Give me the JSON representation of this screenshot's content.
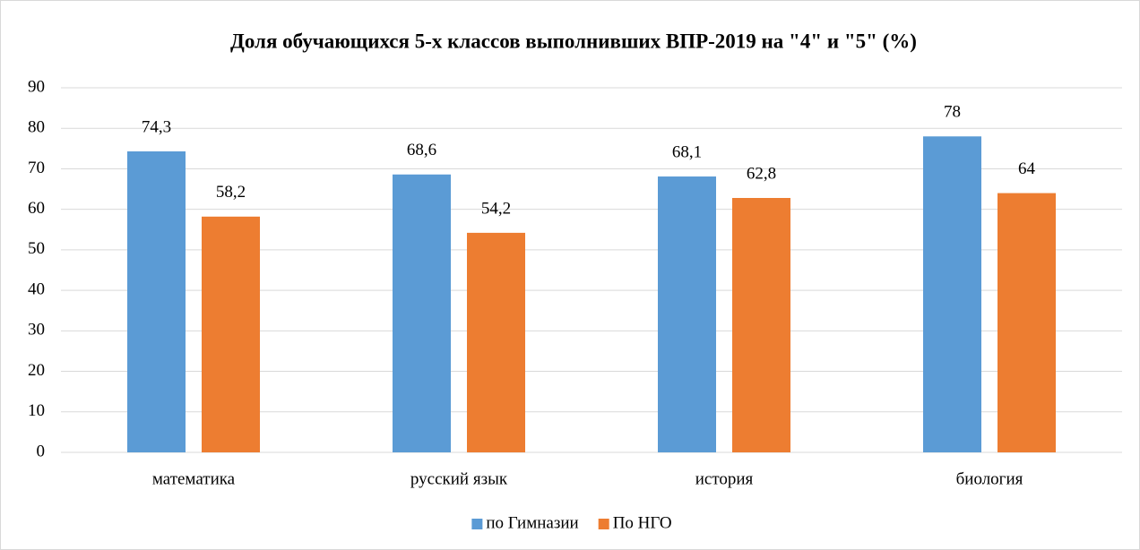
{
  "chart_data": {
    "type": "bar",
    "title": "Доля обучающихся 5-х классов выполнивших ВПР-2019 на \"4\" и \"5\" (%)",
    "categories": [
      "математика",
      "русский язык",
      "история",
      "биология"
    ],
    "series": [
      {
        "name": "по Гимназии",
        "color": "#5b9bd5",
        "values": [
          74.3,
          68.6,
          68.1,
          78
        ],
        "value_labels": [
          "74,3",
          "68,6",
          "68,1",
          "78"
        ]
      },
      {
        "name": "По НГО",
        "color": "#ed7d31",
        "values": [
          58.2,
          54.2,
          62.8,
          64
        ],
        "value_labels": [
          "58,2",
          "54,2",
          "62,8",
          "64"
        ]
      }
    ],
    "ylim": [
      0,
      90
    ],
    "yticks": [
      0,
      10,
      20,
      30,
      40,
      50,
      60,
      70,
      80,
      90
    ],
    "grid": true,
    "legend": "bottom"
  }
}
